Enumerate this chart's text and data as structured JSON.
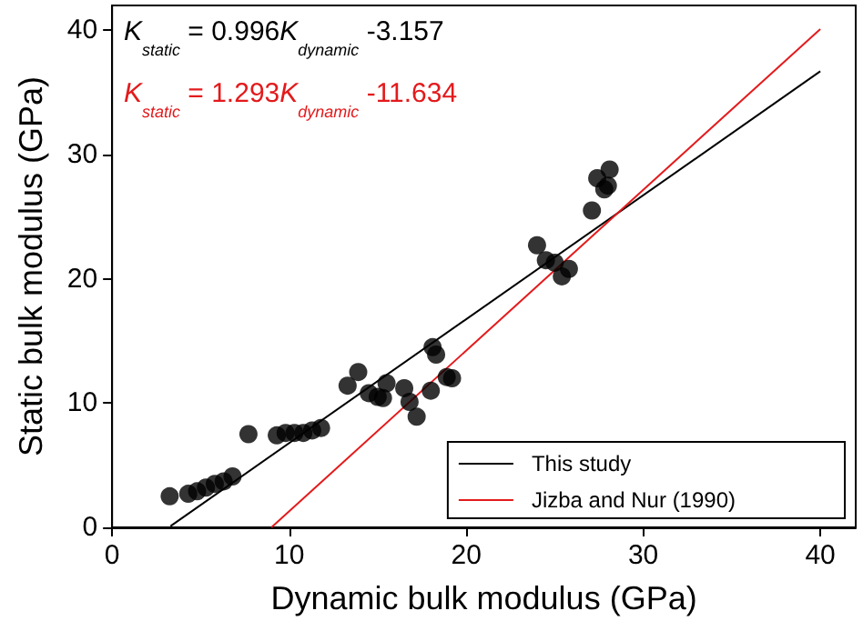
{
  "chart_data": {
    "type": "scatter",
    "xlabel": "Dynamic bulk modulus (GPa)",
    "ylabel": "Static bulk modulus (GPa)",
    "xlim": [
      0,
      42
    ],
    "xticks": [
      0,
      10,
      20,
      30,
      40
    ],
    "ylim": [
      0,
      42
    ],
    "yticks": [
      0,
      10,
      20,
      30,
      40
    ],
    "grid": false,
    "legend": "bottom right",
    "marker": "circle",
    "annotations": [
      "K$_{static}$ = 0.996K$_{dynamic}$ -3.157",
      "K$_{static}$ = 1.293K$_{dynamic}$ -11.634"
    ],
    "series": [
      {
        "color": "#000000",
        "x": [
          3.25,
          4.3,
          4.8,
          5.3,
          5.8,
          6.3,
          6.8,
          7.7,
          9.3,
          9.8,
          10.3,
          10.8,
          11.3,
          11.8,
          13.3,
          13.9,
          14.5,
          15.0,
          15.3,
          15.5,
          16.5,
          16.8,
          17.2,
          18.0,
          18.1,
          18.3,
          18.9,
          19.2,
          24.0,
          24.5,
          25.0,
          25.4,
          25.8,
          27.1,
          27.4,
          27.8,
          28.1,
          28.0
        ],
        "values": [
          2.5,
          2.7,
          2.9,
          3.2,
          3.5,
          3.7,
          4.1,
          7.5,
          7.4,
          7.6,
          7.6,
          7.6,
          7.8,
          8.0,
          11.4,
          12.5,
          10.8,
          10.5,
          10.4,
          11.6,
          11.2,
          10.1,
          8.9,
          11.0,
          14.5,
          13.9,
          12.1,
          12.0,
          22.7,
          21.5,
          21.3,
          20.2,
          20.8,
          25.5,
          28.1,
          27.2,
          28.8,
          27.5
        ]
      },
      {
        "type": "line",
        "name": "This study",
        "color": "#000000",
        "marker": "none",
        "x": [
          3.3,
          40
        ],
        "values": [
          0.1,
          36.7
        ]
      },
      {
        "type": "line",
        "name": "Jizba and Nur (1990)",
        "color": "#e31a1c",
        "marker": "none",
        "x": [
          9.0,
          40
        ],
        "values": [
          0.0,
          40.1
        ]
      }
    ]
  }
}
